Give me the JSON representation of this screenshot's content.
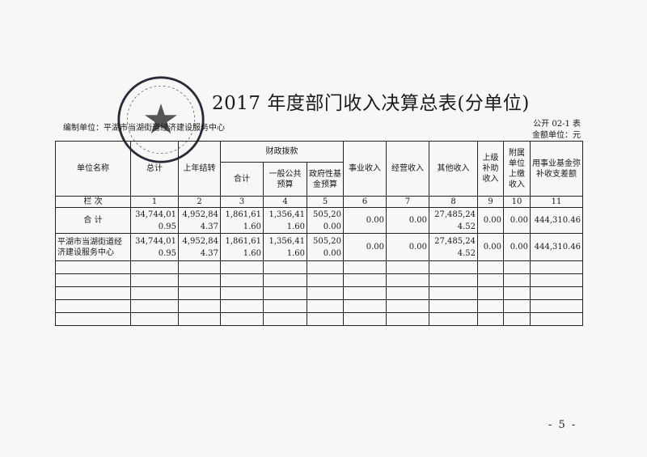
{
  "title": "2017 年度部门收入决算总表(分单位)",
  "compiler_label": "编制单位：平湖市当湖街道经济建设服务中心",
  "form_code": "公开 02-1 表",
  "money_unit": "金额单位：元",
  "seal_text": "平湖市当湖街道经济建设服务中心",
  "table": {
    "headers": {
      "unit_name": "单位名称",
      "total": "总计",
      "carryover": "上年结转",
      "fiscal": "财政拨款",
      "fiscal_total": "合计",
      "general_budget": "一般公共预算",
      "gov_fund": "政府性基金预算",
      "business": "事业收入",
      "operating": "经营收入",
      "other": "其他收入",
      "superior": "上级补助收入",
      "affiliated": "附属单位上缴收入",
      "fund_offset": "用事业基金弥补收支差额"
    },
    "index_label": "栏 次",
    "index": [
      "1",
      "2",
      "3",
      "4",
      "5",
      "6",
      "7",
      "8",
      "9",
      "10",
      "11"
    ],
    "rows": [
      {
        "name": "合 计",
        "values": [
          "34,744,010.95",
          "4,952,844.37",
          "1,861,611.60",
          "1,356,411.60",
          "505,200.00",
          "0.00",
          "0.00",
          "27,485,244.52",
          "0.00",
          "0.00",
          "444,310.46"
        ]
      },
      {
        "name": "平湖市当湖街道经济建设服务中心",
        "values": [
          "34,744,010.95",
          "4,952,844.37",
          "1,861,611.60",
          "1,356,411.60",
          "505,200.00",
          "0.00",
          "0.00",
          "27,485,244.52",
          "0.00",
          "0.00",
          "444,310.46"
        ]
      }
    ]
  },
  "page_number": "- 5 -",
  "colors": {
    "seal": "#2a2a3a",
    "ink": "#1a1a1a"
  }
}
